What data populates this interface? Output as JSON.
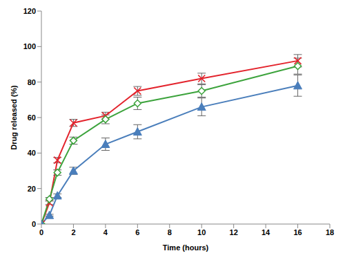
{
  "chart_data": {
    "type": "line",
    "x_label": "Time (hours)",
    "y_label": "Drug released (%)",
    "x": [
      0,
      0.5,
      1,
      2,
      4,
      6,
      10,
      16
    ],
    "xlim": [
      0,
      18
    ],
    "xticks": [
      0,
      2,
      4,
      6,
      8,
      10,
      12,
      14,
      16,
      18
    ],
    "ylim": [
      0,
      120
    ],
    "yticks": [
      0,
      20,
      40,
      60,
      80,
      100,
      120
    ],
    "grid": false,
    "series": [
      {
        "color": "#e3232c",
        "marker": "x",
        "values": [
          0,
          12,
          36,
          57,
          61,
          75,
          82,
          92
        ],
        "error": [
          0,
          1,
          1.5,
          2,
          2,
          2.5,
          3,
          3.5
        ]
      },
      {
        "color": "#3ca33c",
        "marker": "diamond",
        "values": [
          0,
          14,
          29,
          47,
          59,
          68,
          75,
          89
        ],
        "error": [
          0,
          1,
          1.5,
          2,
          2.5,
          3.5,
          3.5,
          4.5
        ]
      },
      {
        "color": "#4a7ebb",
        "marker": "triangle",
        "values": [
          0,
          5,
          16,
          30,
          45,
          52,
          66,
          78
        ],
        "error": [
          0,
          0.5,
          1,
          2,
          3.5,
          4,
          5,
          6
        ]
      }
    ]
  }
}
